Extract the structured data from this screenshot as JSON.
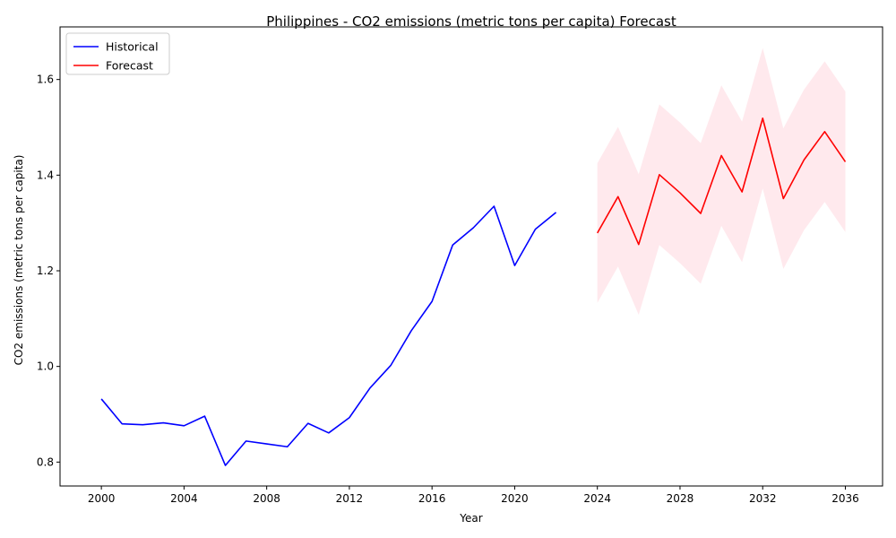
{
  "chart_data": {
    "type": "line",
    "title": "Philippines - CO2 emissions (metric tons per capita) Forecast",
    "xlabel": "Year",
    "ylabel": "CO2 emissions (metric tons per capita)",
    "xlim": [
      1998.0,
      2037.8
    ],
    "ylim": [
      0.75,
      1.71
    ],
    "xticks": [
      2000,
      2004,
      2008,
      2012,
      2016,
      2020,
      2024,
      2028,
      2032,
      2036
    ],
    "yticks": [
      0.8,
      1.0,
      1.2,
      1.4,
      1.6
    ],
    "ytick_labels": [
      "0.8",
      "1.0",
      "1.2",
      "1.4",
      "1.6"
    ],
    "grid": false,
    "legend_position": "upper-left",
    "series": [
      {
        "name": "Historical",
        "color": "#0000ff",
        "x": [
          2000,
          2001,
          2002,
          2003,
          2004,
          2005,
          2006,
          2007,
          2008,
          2009,
          2010,
          2011,
          2012,
          2013,
          2014,
          2015,
          2016,
          2017,
          2018,
          2019,
          2020,
          2021,
          2022
        ],
        "y": [
          0.932,
          0.88,
          0.878,
          0.882,
          0.876,
          0.896,
          0.793,
          0.844,
          0.838,
          0.832,
          0.881,
          0.861,
          0.893,
          0.955,
          1.002,
          1.075,
          1.136,
          1.254,
          1.29,
          1.335,
          1.211,
          1.287,
          1.322
        ]
      },
      {
        "name": "Forecast",
        "color": "#ff0000",
        "band_color": "#ffc0cb",
        "x": [
          2024,
          2025,
          2026,
          2027,
          2028,
          2029,
          2030,
          2031,
          2032,
          2033,
          2034,
          2035,
          2036
        ],
        "y": [
          1.279,
          1.355,
          1.255,
          1.401,
          1.363,
          1.32,
          1.441,
          1.365,
          1.519,
          1.351,
          1.432,
          1.491,
          1.428
        ],
        "lower": [
          1.133,
          1.209,
          1.108,
          1.254,
          1.216,
          1.173,
          1.294,
          1.218,
          1.372,
          1.204,
          1.285,
          1.344,
          1.281
        ],
        "upper": [
          1.425,
          1.501,
          1.402,
          1.548,
          1.51,
          1.467,
          1.588,
          1.512,
          1.666,
          1.498,
          1.579,
          1.638,
          1.575
        ]
      }
    ]
  }
}
